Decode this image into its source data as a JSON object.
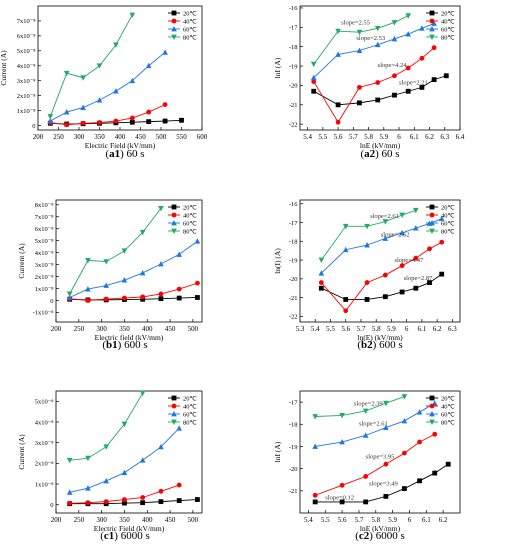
{
  "captions": [
    {
      "id": "a1",
      "tag": "a1",
      "text": " 60 s"
    },
    {
      "id": "a2",
      "tag": "a2",
      "text": " 60 s"
    },
    {
      "id": "b1",
      "tag": "b1",
      "text": " 600 s"
    },
    {
      "id": "b2",
      "tag": "b2",
      "text": " 600 s"
    },
    {
      "id": "c1",
      "tag": "c1",
      "text": " 6000 s"
    },
    {
      "id": "c2",
      "tag": "c2",
      "text": " 6000 s"
    }
  ],
  "series_style": [
    {
      "name": "20℃",
      "color": "#000000",
      "marker": "square"
    },
    {
      "name": "40℃",
      "color": "#ff0000",
      "marker": "circle"
    },
    {
      "name": "60℃",
      "color": "#1f77e0",
      "marker": "triangle-up"
    },
    {
      "name": "80℃",
      "color": "#22aa66",
      "marker": "triangle-down"
    }
  ],
  "chart_data": [
    {
      "id": "a1",
      "type": "line",
      "xlabel": "Electric Field (kV/mm)",
      "ylabel": "Current (A)",
      "xlim": [
        200,
        600
      ],
      "xticks": [
        200,
        250,
        300,
        350,
        400,
        450,
        500,
        550,
        600
      ],
      "ylim": [
        -0.3,
        8.0
      ],
      "ytick_values": [
        0,
        1,
        2,
        3,
        4,
        5,
        6,
        7
      ],
      "ytick_labels": [
        "0",
        "1x10⁻⁸",
        "2x10⁻⁸",
        "3x10⁻⁸",
        "4x10⁻⁸",
        "5x10⁻⁸",
        "6x10⁻⁸",
        "7x10⁻⁸"
      ],
      "legend_position": "top-right",
      "series": [
        {
          "name": "20℃",
          "x": [
            230,
            270,
            310,
            350,
            390,
            430,
            470,
            510,
            550
          ],
          "y": [
            0.15,
            0.1,
            0.12,
            0.15,
            0.18,
            0.22,
            0.26,
            0.3,
            0.35
          ]
        },
        {
          "name": "40℃",
          "x": [
            230,
            270,
            310,
            350,
            390,
            430,
            470,
            510
          ],
          "y": [
            0.2,
            0.05,
            0.15,
            0.2,
            0.3,
            0.5,
            0.9,
            1.4
          ]
        },
        {
          "name": "60℃",
          "x": [
            230,
            270,
            310,
            350,
            390,
            430,
            470,
            510
          ],
          "y": [
            0.3,
            0.9,
            1.2,
            1.7,
            2.3,
            3.0,
            4.0,
            4.9
          ]
        },
        {
          "name": "80℃",
          "x": [
            230,
            270,
            310,
            350,
            390,
            430
          ],
          "y": [
            0.6,
            3.5,
            3.2,
            4.0,
            5.4,
            7.4
          ]
        }
      ]
    },
    {
      "id": "a2",
      "type": "line",
      "xlabel": "lnE (kV/mm)",
      "ylabel": "lnI (A)",
      "xlim": [
        5.35,
        6.4
      ],
      "xticks": [
        5.4,
        5.5,
        5.6,
        5.7,
        5.8,
        5.9,
        6.0,
        6.1,
        6.2,
        6.3,
        6.4
      ],
      "ylim": [
        -22.3,
        -15.9
      ],
      "ytick_values": [
        -22,
        -21,
        -20,
        -19,
        -18,
        -17,
        -16
      ],
      "ytick_labels": [
        "-22",
        "-21",
        "-20",
        "-19",
        "-18",
        "-17",
        "-16"
      ],
      "legend_position": "top-right",
      "series": [
        {
          "name": "20℃",
          "x": [
            5.44,
            5.6,
            5.74,
            5.86,
            5.97,
            6.06,
            6.15,
            6.23,
            6.31
          ],
          "y": [
            -20.3,
            -21.0,
            -20.9,
            -20.75,
            -20.5,
            -20.3,
            -20.1,
            -19.7,
            -19.5
          ]
        },
        {
          "name": "40℃",
          "x": [
            5.44,
            5.6,
            5.74,
            5.86,
            5.97,
            6.06,
            6.15,
            6.23
          ],
          "y": [
            -19.8,
            -21.9,
            -20.1,
            -19.85,
            -19.5,
            -19.1,
            -18.6,
            -18.05
          ]
        },
        {
          "name": "60℃",
          "x": [
            5.44,
            5.6,
            5.74,
            5.86,
            5.97,
            6.06,
            6.15,
            6.23
          ],
          "y": [
            -19.6,
            -18.4,
            -18.2,
            -17.9,
            -17.6,
            -17.35,
            -17.05,
            -16.8
          ]
        },
        {
          "name": "80℃",
          "x": [
            5.44,
            5.6,
            5.74,
            5.86,
            5.97,
            6.06
          ],
          "y": [
            -18.9,
            -17.2,
            -17.25,
            -17.05,
            -16.75,
            -16.4
          ]
        }
      ],
      "annotations": [
        {
          "text": "slope=2.55",
          "x": 5.62,
          "y": -16.85
        },
        {
          "text": "slope=2.53",
          "x": 5.72,
          "y": -17.65
        },
        {
          "text": "slope=4.24",
          "x": 5.86,
          "y": -19.05
        },
        {
          "text": "slope=2.21",
          "x": 6.0,
          "y": -19.95
        }
      ]
    },
    {
      "id": "b1",
      "type": "line",
      "xlabel": "Electric field (kV/mm)",
      "ylabel": "Current (A)",
      "xlim": [
        200,
        520
      ],
      "xticks": [
        200,
        250,
        300,
        350,
        400,
        450,
        500
      ],
      "ylim": [
        -1.8,
        8.4
      ],
      "ytick_values": [
        -1,
        0,
        1,
        2,
        3,
        4,
        5,
        6,
        7,
        8
      ],
      "ytick_labels": [
        "-1x10⁻⁸",
        "0",
        "1x10⁻⁸",
        "2x10⁻⁸",
        "3x10⁻⁸",
        "4x10⁻⁸",
        "5x10⁻⁸",
        "6x10⁻⁸",
        "7x10⁻⁸",
        "8x10⁻⁸"
      ],
      "legend_position": "top-right",
      "series": [
        {
          "name": "20℃",
          "x": [
            230,
            270,
            310,
            350,
            390,
            430,
            470,
            510
          ],
          "y": [
            0.1,
            0.05,
            0.05,
            0.08,
            0.1,
            0.15,
            0.2,
            0.25
          ]
        },
        {
          "name": "40℃",
          "x": [
            230,
            270,
            310,
            350,
            390,
            430,
            470,
            510
          ],
          "y": [
            0.15,
            0.0,
            0.12,
            0.2,
            0.3,
            0.55,
            0.95,
            1.45
          ]
        },
        {
          "name": "60℃",
          "x": [
            230,
            270,
            310,
            350,
            390,
            430,
            470,
            510
          ],
          "y": [
            0.25,
            0.95,
            1.25,
            1.7,
            2.3,
            3.05,
            3.85,
            4.95
          ]
        },
        {
          "name": "80℃",
          "x": [
            230,
            270,
            310,
            350,
            390,
            430
          ],
          "y": [
            0.55,
            3.35,
            3.25,
            4.15,
            5.7,
            7.7
          ]
        }
      ]
    },
    {
      "id": "b2",
      "type": "line",
      "xlabel": "ln(E) (kV/mm)",
      "ylabel": "ln(I) (A)",
      "xlim": [
        5.3,
        6.35
      ],
      "xticks": [
        5.3,
        5.4,
        5.5,
        5.6,
        5.7,
        5.8,
        5.9,
        6.0,
        6.1,
        6.2,
        6.3
      ],
      "ylim": [
        -22.3,
        -15.8
      ],
      "ytick_values": [
        -22,
        -21,
        -20,
        -19,
        -18,
        -17,
        -16
      ],
      "ytick_labels": [
        "-22",
        "-21",
        "-20",
        "-19",
        "-18",
        "-17",
        "-16"
      ],
      "legend_position": "top-right",
      "series": [
        {
          "name": "20℃",
          "x": [
            5.44,
            5.6,
            5.74,
            5.86,
            5.97,
            6.06,
            6.15,
            6.23
          ],
          "y": [
            -20.5,
            -21.1,
            -21.1,
            -20.95,
            -20.7,
            -20.5,
            -20.2,
            -19.75
          ]
        },
        {
          "name": "40℃",
          "x": [
            5.44,
            5.6,
            5.74,
            5.86,
            5.97,
            6.06,
            6.15,
            6.23
          ],
          "y": [
            -20.2,
            -21.7,
            -20.2,
            -19.8,
            -19.3,
            -18.9,
            -18.4,
            -18.05
          ]
        },
        {
          "name": "60℃",
          "x": [
            5.44,
            5.6,
            5.74,
            5.86,
            5.97,
            6.06,
            6.15,
            6.23
          ],
          "y": [
            -19.7,
            -18.45,
            -18.2,
            -17.85,
            -17.55,
            -17.3,
            -17.05,
            -16.8
          ]
        },
        {
          "name": "80℃",
          "x": [
            5.44,
            5.6,
            5.74,
            5.86,
            5.97,
            6.06
          ],
          "y": [
            -19.0,
            -17.2,
            -17.2,
            -16.95,
            -16.6,
            -16.35
          ]
        }
      ],
      "annotations": [
        {
          "text": "slope=2.61",
          "x": 5.76,
          "y": -16.75
        },
        {
          "text": "slope=2.62",
          "x": 5.83,
          "y": -17.75
        },
        {
          "text": "slope=4.47",
          "x": 5.92,
          "y": -19.1
        },
        {
          "text": "slope=2.87",
          "x": 5.98,
          "y": -20.05
        }
      ]
    },
    {
      "id": "c1",
      "type": "line",
      "xlabel": "Electric Field (kV/mm)",
      "ylabel": "Current (A)",
      "xlim": [
        200,
        520
      ],
      "xticks": [
        200,
        250,
        300,
        350,
        400,
        450,
        500
      ],
      "ylim": [
        -0.4,
        5.5
      ],
      "ytick_values": [
        0,
        1,
        2,
        3,
        4,
        5
      ],
      "ytick_labels": [
        "0",
        "1x10⁻⁸",
        "2x10⁻⁸",
        "3x10⁻⁸",
        "4x10⁻⁸",
        "5x10⁻⁸"
      ],
      "legend_position": "top-right",
      "series": [
        {
          "name": "20℃",
          "x": [
            230,
            270,
            310,
            350,
            390,
            430,
            470,
            510
          ],
          "y": [
            0.05,
            0.05,
            0.05,
            0.08,
            0.1,
            0.15,
            0.2,
            0.25
          ]
        },
        {
          "name": "40℃",
          "x": [
            230,
            270,
            310,
            350,
            390,
            430,
            470
          ],
          "y": [
            0.07,
            0.1,
            0.15,
            0.25,
            0.35,
            0.65,
            0.95
          ]
        },
        {
          "name": "60℃",
          "x": [
            230,
            270,
            310,
            350,
            390,
            430,
            470
          ],
          "y": [
            0.6,
            0.8,
            1.15,
            1.55,
            2.15,
            2.8,
            3.7
          ]
        },
        {
          "name": "80℃",
          "x": [
            230,
            270,
            310,
            350,
            390
          ],
          "y": [
            2.15,
            2.25,
            2.8,
            3.9,
            5.4
          ]
        }
      ]
    },
    {
      "id": "c2",
      "type": "line",
      "xlabel": "lnE (kV/mm)",
      "ylabel": "lnI (A)",
      "xlim": [
        5.35,
        6.3
      ],
      "xticks": [
        5.4,
        5.5,
        5.6,
        5.7,
        5.8,
        5.9,
        6.0,
        6.1,
        6.2
      ],
      "ylim": [
        -22.0,
        -16.5
      ],
      "ytick_values": [
        -21,
        -20,
        -19,
        -18,
        -17
      ],
      "ytick_labels": [
        "-21",
        "-20",
        "-19",
        "-18",
        "-17"
      ],
      "legend_position": "top-right",
      "series": [
        {
          "name": "20℃",
          "x": [
            5.44,
            5.6,
            5.74,
            5.86,
            5.97,
            6.06,
            6.15,
            6.23
          ],
          "y": [
            -21.5,
            -21.5,
            -21.5,
            -21.25,
            -20.9,
            -20.55,
            -20.2,
            -19.8
          ]
        },
        {
          "name": "40℃",
          "x": [
            5.44,
            5.6,
            5.74,
            5.86,
            5.97,
            6.06,
            6.15
          ],
          "y": [
            -21.2,
            -20.75,
            -20.35,
            -19.8,
            -19.3,
            -18.8,
            -18.45
          ]
        },
        {
          "name": "60℃",
          "x": [
            5.44,
            5.6,
            5.74,
            5.86,
            5.97,
            6.06,
            6.15
          ],
          "y": [
            -19.0,
            -18.8,
            -18.5,
            -18.15,
            -17.85,
            -17.45,
            -17.05
          ]
        },
        {
          "name": "80℃",
          "x": [
            5.44,
            5.6,
            5.74,
            5.86,
            5.97
          ],
          "y": [
            -17.65,
            -17.6,
            -17.4,
            -17.05,
            -16.75
          ]
        }
      ],
      "annotations": [
        {
          "text": "slope=2.39",
          "x": 5.67,
          "y": -17.15
        },
        {
          "text": "slope=2.61",
          "x": 5.7,
          "y": -18.05
        },
        {
          "text": "slope=3.95",
          "x": 5.74,
          "y": -19.55
        },
        {
          "text": "slope=3.49",
          "x": 5.76,
          "y": -20.75
        },
        {
          "text": "slope=0.12",
          "x": 5.5,
          "y": -21.4
        }
      ]
    }
  ]
}
